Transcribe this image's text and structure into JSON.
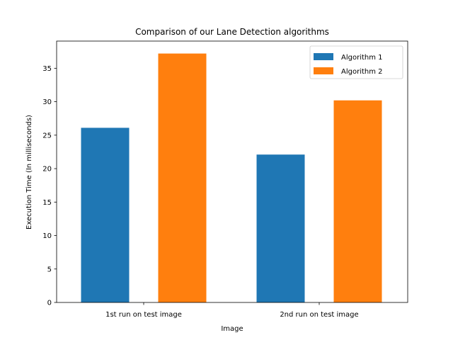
{
  "chart_data": {
    "type": "bar",
    "title": "Comparison of our Lane Detection algorithms",
    "xlabel": "Image",
    "ylabel": "Execution Time (In milliseconds)",
    "categories": [
      "1st run on test image",
      "2nd run on test image"
    ],
    "series": [
      {
        "name": "Algorithm 1",
        "values": [
          26.1,
          22.1
        ],
        "color": "#1f77b4"
      },
      {
        "name": "Algorithm 2",
        "values": [
          37.2,
          30.2
        ],
        "color": "#ff7f0e"
      }
    ],
    "ylim": [
      0,
      39.06
    ],
    "yticks": [
      0,
      5,
      10,
      15,
      20,
      25,
      30,
      35
    ],
    "grid": false,
    "legend_position": "top-right"
  }
}
